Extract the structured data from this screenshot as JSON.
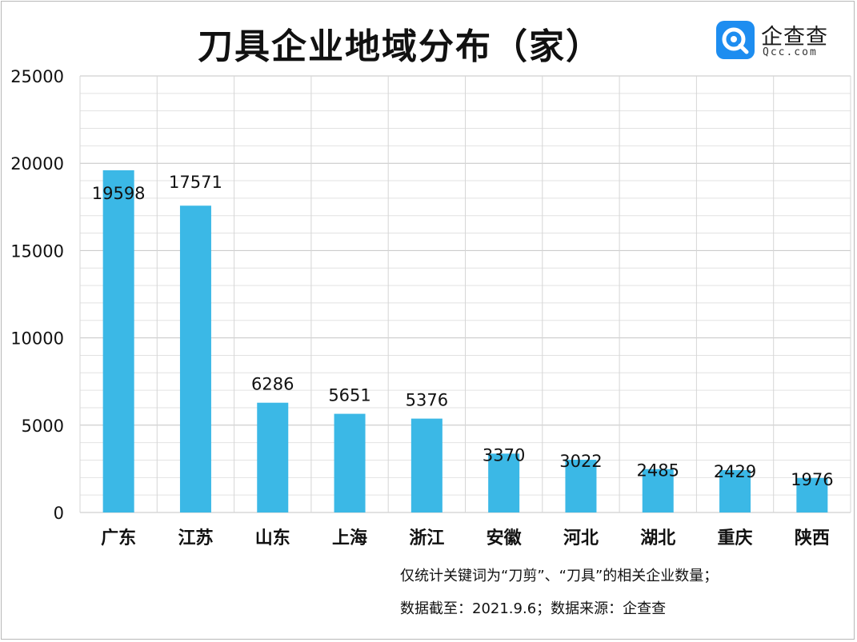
{
  "header": {
    "title": "刀具企业地域分布（家）"
  },
  "logo": {
    "name": "企查查",
    "domain": "Qcc.com",
    "color": "#1d8df0"
  },
  "notes": {
    "line1": "仅统计关键词为“刀剪”、“刀具”的相关企业数量；",
    "line2": "数据截至：2021.9.6；数据来源：企查查"
  },
  "chart_data": {
    "type": "bar",
    "title": "刀具企业地域分布（家）",
    "categories": [
      "广东",
      "江苏",
      "山东",
      "上海",
      "浙江",
      "安徽",
      "河北",
      "湖北",
      "重庆",
      "陕西"
    ],
    "values": [
      19598,
      17571,
      6286,
      5651,
      5376,
      3370,
      3022,
      2485,
      2429,
      1976
    ],
    "value_labels": [
      "19598",
      "17571",
      "6286",
      "5651",
      "5376",
      "3370",
      "3022",
      "2485",
      "2429",
      "1976"
    ],
    "yticks": [
      0,
      5000,
      10000,
      15000,
      20000,
      25000
    ],
    "ytick_labels": [
      "0",
      "5000",
      "10000",
      "15000",
      "20000",
      "25000"
    ],
    "ylim": [
      0,
      25000
    ],
    "grid": true,
    "bar_color": "#3bb8e6",
    "xlabel": "",
    "ylabel": ""
  }
}
